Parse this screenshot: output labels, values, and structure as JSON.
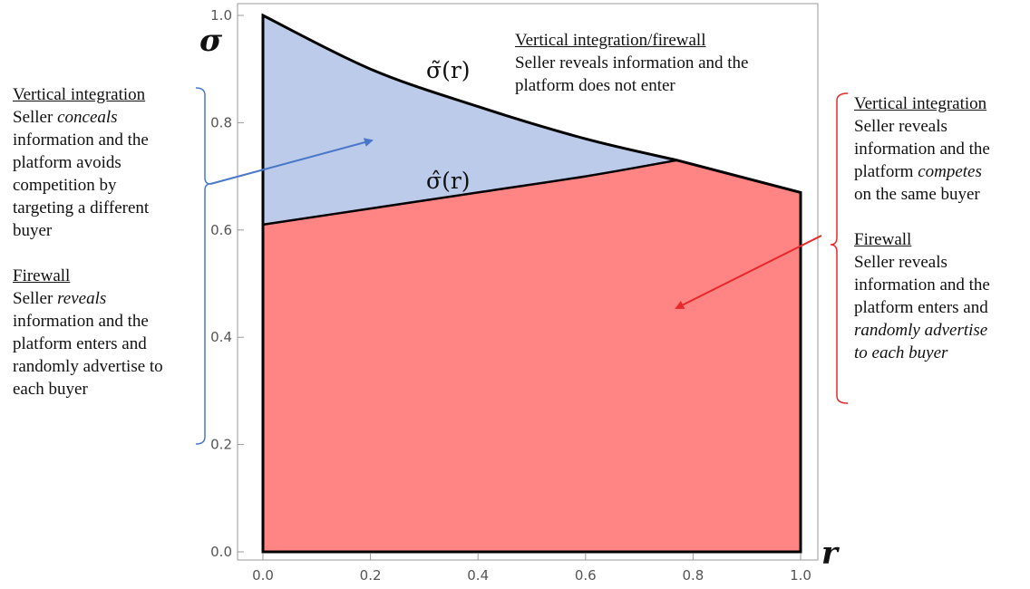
{
  "chart_data": {
    "type": "area",
    "xlabel": "r",
    "ylabel": "σ",
    "xlim": [
      0,
      1
    ],
    "ylim": [
      0,
      1
    ],
    "x_ticks": [
      "0.0",
      "0.2",
      "0.4",
      "0.6",
      "0.8",
      "1.0"
    ],
    "y_ticks": [
      "0.0",
      "0.2",
      "0.4",
      "0.6",
      "0.8",
      "1.0"
    ],
    "curves": [
      {
        "label": "σ̃(r)",
        "points": [
          [
            0,
            1.0
          ],
          [
            0.2,
            0.9
          ],
          [
            0.4,
            0.83
          ],
          [
            0.6,
            0.77
          ],
          [
            0.77,
            0.73
          ]
        ]
      },
      {
        "label": "σ̂(r)",
        "points": [
          [
            0,
            0.61
          ],
          [
            0.2,
            0.64
          ],
          [
            0.4,
            0.67
          ],
          [
            0.6,
            0.7
          ],
          [
            0.77,
            0.73
          ]
        ]
      }
    ],
    "regions": [
      {
        "color": "#bccbea",
        "upper": "σ̃(r)",
        "lower": "σ̂(r)",
        "x_range": [
          0,
          0.77
        ]
      },
      {
        "color": "#ff8585",
        "polygon": [
          [
            0,
            0
          ],
          [
            0,
            0.61
          ],
          [
            0.77,
            0.73
          ],
          [
            1.0,
            0.67
          ],
          [
            1.0,
            0
          ]
        ]
      }
    ],
    "top_right_boundary": [
      [
        0.77,
        0.73
      ],
      [
        1.0,
        0.67
      ]
    ],
    "grid": false
  },
  "annotations": {
    "top": {
      "heading": "Vertical integration/firewall",
      "lines": [
        "Seller reveals information and the",
        "platform does not enter"
      ]
    },
    "left": {
      "heading1": "Vertical integration",
      "line1_pre": "Seller ",
      "line1_em": "conceals",
      "lines1": [
        "information and the",
        "platform avoids",
        "competition by",
        "targeting a different",
        "buyer"
      ],
      "heading2": "Firewall",
      "line2_pre": "Seller ",
      "line2_em": "reveals",
      "lines2": [
        "information and the",
        "platform enters and",
        "randomly advertise to",
        "each buyer"
      ]
    },
    "right": {
      "heading1": "Vertical integration",
      "lines1a": [
        "Seller reveals",
        "information and the"
      ],
      "line1_pre": "platform ",
      "line1_em": "competes",
      "line1b": "on the same buyer",
      "heading2": "Firewall",
      "lines2": [
        "Seller reveals",
        "information and the",
        "platform enters and"
      ],
      "lines2_em": [
        "randomly advertise",
        "to each buyer"
      ]
    }
  },
  "colors": {
    "blue_region": "#bccbea",
    "red_region": "#ff8585",
    "blue_annotation": "#4a78c8",
    "red_annotation": "#e8292b"
  }
}
